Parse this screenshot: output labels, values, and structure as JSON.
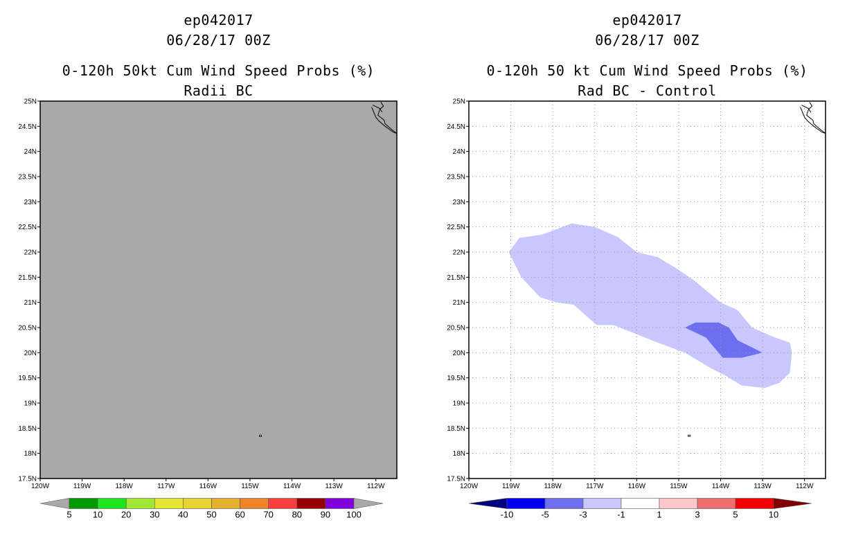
{
  "chart_data": [
    {
      "type": "filled-contour-map",
      "title_lines": [
        "ep042017",
        "06/28/17 00Z",
        "0-120h 50kt Cum Wind Speed Probs (%)",
        "Radii BC"
      ],
      "xlim": [
        -120,
        -111.5
      ],
      "ylim": [
        17.5,
        25
      ],
      "x_ticks": [
        -120,
        -119,
        -118,
        -117,
        -116,
        -115,
        -114,
        -113,
        -112
      ],
      "x_tick_labels": [
        "120W",
        "119W",
        "118W",
        "117W",
        "116W",
        "115W",
        "114W",
        "113W",
        "112W"
      ],
      "y_ticks": [
        17.5,
        18,
        18.5,
        19,
        19.5,
        20,
        20.5,
        21,
        21.5,
        22,
        22.5,
        23,
        23.5,
        24,
        24.5,
        25
      ],
      "y_tick_labels": [
        "17.5N",
        "18N",
        "18.5N",
        "19N",
        "19.5N",
        "20N",
        "20.5N",
        "21N",
        "21.5N",
        "22N",
        "22.5N",
        "23N",
        "23.5N",
        "24N",
        "24.5N",
        "25N"
      ],
      "grid": false,
      "field_value_everywhere": "below 5",
      "background_color": "#a9a9a9",
      "colorbar": {
        "labels": [
          "5",
          "10",
          "20",
          "30",
          "40",
          "50",
          "60",
          "70",
          "80",
          "90",
          "100"
        ],
        "colors": [
          "#a9a9a9",
          "#009a00",
          "#1ee61e",
          "#a0e632",
          "#e6e632",
          "#e6d232",
          "#e6af2d",
          "#f08228",
          "#fa3c3c",
          "#960000",
          "#8200dc",
          "#a9a9a9"
        ]
      }
    },
    {
      "type": "filled-contour-map",
      "title_lines": [
        "ep042017",
        "06/28/17 00Z",
        "0-120h 50 kt Cum Wind Speed Probs (%)",
        "Rad BC - Control"
      ],
      "xlim": [
        -120,
        -111.5
      ],
      "ylim": [
        17.5,
        25
      ],
      "x_ticks": [
        -120,
        -119,
        -118,
        -117,
        -116,
        -115,
        -114,
        -113,
        -112
      ],
      "x_tick_labels": [
        "120W",
        "119W",
        "118W",
        "117W",
        "116W",
        "115W",
        "114W",
        "113W",
        "112W"
      ],
      "y_ticks": [
        17.5,
        18,
        18.5,
        19,
        19.5,
        20,
        20.5,
        21,
        21.5,
        22,
        22.5,
        23,
        23.5,
        24,
        24.5,
        25
      ],
      "y_tick_labels": [
        "17.5N",
        "18N",
        "18.5N",
        "19N",
        "19.5N",
        "20N",
        "20.5N",
        "21N",
        "21.5N",
        "22N",
        "22.5N",
        "23N",
        "23.5N",
        "24N",
        "24.5N",
        "25N"
      ],
      "grid": true,
      "regions": [
        {
          "name": "difference -3 to -1",
          "color": "#c8c8ff",
          "polygon": [
            [
              -119.05,
              22.0
            ],
            [
              -118.8,
              22.28
            ],
            [
              -118.25,
              22.35
            ],
            [
              -117.55,
              22.57
            ],
            [
              -117.0,
              22.5
            ],
            [
              -116.45,
              22.3
            ],
            [
              -116.0,
              22.0
            ],
            [
              -115.5,
              21.9
            ],
            [
              -115.1,
              21.7
            ],
            [
              -114.65,
              21.45
            ],
            [
              -114.0,
              21.0
            ],
            [
              -113.6,
              20.85
            ],
            [
              -113.25,
              20.5
            ],
            [
              -112.7,
              20.3
            ],
            [
              -112.35,
              20.2
            ],
            [
              -112.3,
              20.0
            ],
            [
              -112.35,
              19.6
            ],
            [
              -112.6,
              19.4
            ],
            [
              -112.95,
              19.3
            ],
            [
              -113.5,
              19.35
            ],
            [
              -113.9,
              19.55
            ],
            [
              -114.25,
              19.7
            ],
            [
              -114.85,
              20.0
            ],
            [
              -115.5,
              20.2
            ],
            [
              -116.1,
              20.4
            ],
            [
              -116.55,
              20.55
            ],
            [
              -116.95,
              20.55
            ],
            [
              -117.5,
              20.95
            ],
            [
              -117.9,
              21.0
            ],
            [
              -118.3,
              21.1
            ],
            [
              -118.75,
              21.5
            ],
            [
              -119.05,
              22.0
            ]
          ]
        },
        {
          "name": "difference -5 to -3",
          "color": "#6e6ef0",
          "polygon": [
            [
              -114.85,
              20.5
            ],
            [
              -114.6,
              20.6
            ],
            [
              -114.05,
              20.6
            ],
            [
              -113.8,
              20.5
            ],
            [
              -113.6,
              20.25
            ],
            [
              -113.0,
              20.0
            ],
            [
              -113.5,
              19.9
            ],
            [
              -113.95,
              19.9
            ],
            [
              -114.35,
              20.3
            ],
            [
              -114.85,
              20.5
            ]
          ]
        }
      ],
      "colorbar": {
        "labels": [
          "-10",
          "-5",
          "-3",
          "-1",
          "1",
          "3",
          "5",
          "10"
        ],
        "colors": [
          "#000080",
          "#0000f0",
          "#6e6ef0",
          "#c8c8ff",
          "#ffffff",
          "#ffc8c8",
          "#f06e6e",
          "#f00000",
          "#800000"
        ]
      }
    }
  ],
  "coastline_color": "#000000"
}
